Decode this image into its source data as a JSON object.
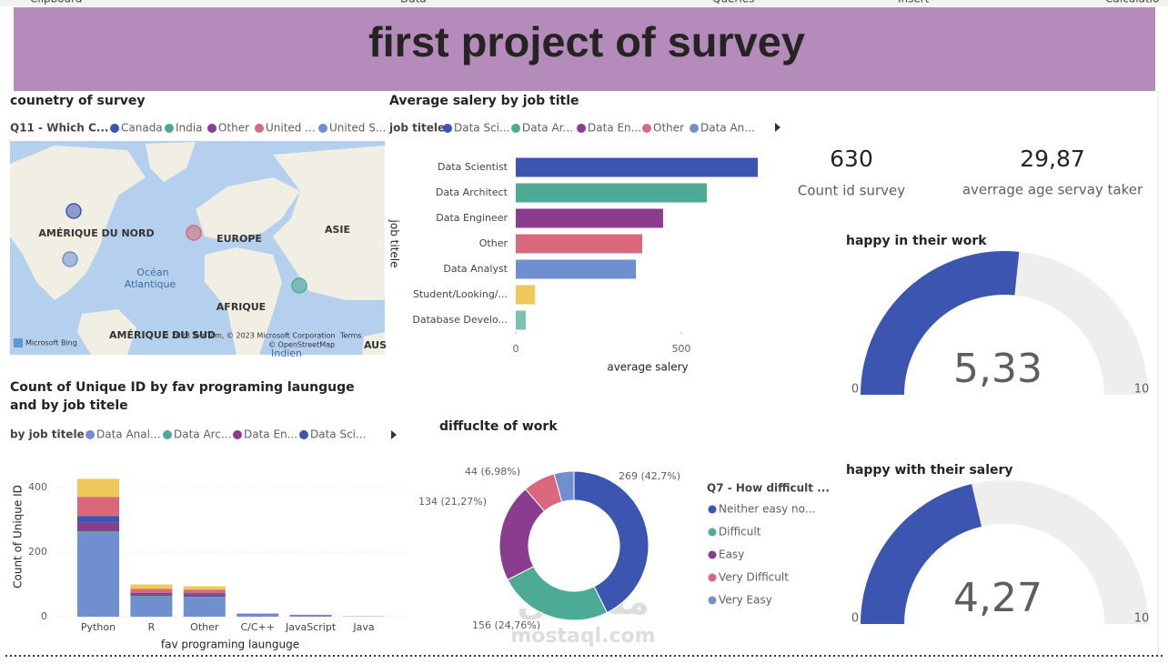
{
  "ribbon": [
    "Clipboard",
    "Data",
    "Queries",
    "Insert",
    "Calculatio"
  ],
  "header": {
    "title": "first project of survey"
  },
  "cards": [
    {
      "value": 630,
      "label": "Count id survey"
    },
    {
      "value": 29.87,
      "value_label": "29,87",
      "label": "averrage age servay taker"
    }
  ],
  "chart_data": [
    {
      "type": "map",
      "title": "counetry of survey",
      "legend_title": "Q11 - Which C...",
      "series": [
        {
          "name": "Canada",
          "color": "#3c55b0"
        },
        {
          "name": "India",
          "color": "#4daa94"
        },
        {
          "name": "Other",
          "color": "#8a3d8e"
        },
        {
          "name": "United ...",
          "color": "#d9687a"
        },
        {
          "name": "United S...",
          "color": "#6f8fd1"
        }
      ],
      "map_labels": [
        "AMÉRIQUE DU NORD",
        "EUROPE",
        "ASIE",
        "Océan",
        "Atlantique",
        "AFRIQUE",
        "AMÉRIQUE DU SUD",
        "Indien",
        "AUS"
      ],
      "attribution": [
        "Microsoft Bing",
        "© 2023 TomTom, © 2023 Microsoft Corporation",
        "Terms",
        "© OpenStreetMap"
      ]
    },
    {
      "type": "bar",
      "title": "Average salery by job title",
      "legend_title": "job titele",
      "legend": [
        {
          "name": "Data Sci...",
          "color": "#3c55b0"
        },
        {
          "name": "Data Ar...",
          "color": "#4daa94"
        },
        {
          "name": "Data En...",
          "color": "#8a3d8e"
        },
        {
          "name": "Other",
          "color": "#d9687a"
        },
        {
          "name": "Data An...",
          "color": "#6f8fd1"
        }
      ],
      "categories": [
        "Data Scientist",
        "Data Architect",
        "Data Engineer",
        "Other",
        "Data Analyst",
        "Student/Looking/...",
        "Database Develo..."
      ],
      "values": [
        731,
        577,
        445,
        382,
        363,
        58,
        30
      ],
      "colors": [
        "#3c55b0",
        "#4daa94",
        "#8a3d8e",
        "#d9687a",
        "#6f8fd1",
        "#f0c75a",
        "#7cc2b3"
      ],
      "xlim": [
        0,
        731
      ],
      "xticks": [
        0,
        500
      ],
      "xlabel": "average salery",
      "ylabel": "job titele"
    },
    {
      "type": "stacked_bar",
      "title": "Count of Unique ID by fav programing launguge and by job titele",
      "legend_title": "by job titele",
      "categories": [
        "Python",
        "R",
        "Other",
        "C/C++",
        "JavaScript",
        "Java"
      ],
      "series": [
        {
          "name": "Data Anal...",
          "color": "#6f8fd1",
          "values": [
            259,
            62,
            60,
            7,
            2,
            1
          ]
        },
        {
          "name": "Data Arc...",
          "color": "#4daa94",
          "values": [
            5,
            2,
            2,
            0,
            0,
            0
          ]
        },
        {
          "name": "Data En...",
          "color": "#8a3d8e",
          "values": [
            28,
            6,
            6,
            1,
            1,
            0
          ]
        },
        {
          "name": "Data Sci...",
          "color": "#3c55b0",
          "values": [
            20,
            4,
            5,
            1,
            1,
            0
          ]
        },
        {
          "color": "#d9687a",
          "values": [
            59,
            12,
            11,
            1,
            2,
            0
          ]
        },
        {
          "color": "#f0c75a",
          "values": [
            56,
            14,
            10,
            0,
            0,
            0
          ]
        }
      ],
      "ylim": [
        0,
        440
      ],
      "yticks": [
        0,
        200,
        400
      ],
      "grid": true,
      "xlabel": "fav programing launguge",
      "ylabel": "Count of Unique ID"
    },
    {
      "type": "donut",
      "title": "diffuclte of work",
      "legend_title": "Q7 - How difficult ...",
      "categories": [
        "Neither easy no...",
        "Difficult",
        "Easy",
        "Very Difficult",
        "Very Easy"
      ],
      "values": [
        269,
        156,
        134,
        44,
        27
      ],
      "value_labels": [
        "269 (42,7%)",
        "156 (24,76%)",
        "134 (21,27%)",
        "44 (6,98%)",
        null
      ],
      "colors": [
        "#3c55b0",
        "#4daa94",
        "#8a3d8e",
        "#d9687a",
        "#6f8fd1"
      ]
    },
    {
      "type": "gauge",
      "title": "happy in their work",
      "value": 5.33,
      "value_label": "5,33",
      "range": [
        0,
        10
      ],
      "color": "#3c55b0"
    },
    {
      "type": "gauge",
      "title": "happy with their salery",
      "value": 4.27,
      "value_label": "4,27",
      "range": [
        0,
        10
      ],
      "color": "#3c55b0"
    }
  ],
  "watermark": [
    "مستقل",
    "mostaql.com"
  ]
}
